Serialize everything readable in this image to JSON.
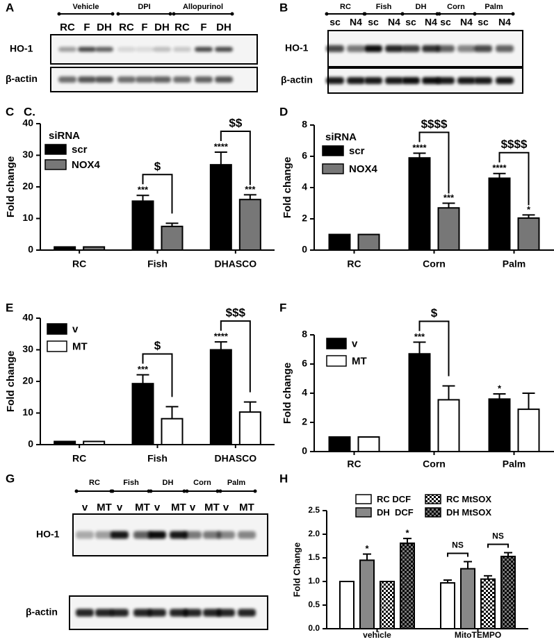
{
  "chart_data": [
    {
      "type": "bar",
      "panel": "C",
      "annotations": [
        "C."
      ],
      "ylabel": "Fold change",
      "legend_title": "siRNA",
      "categories": [
        "RC",
        "Fish",
        "DHASCO"
      ],
      "series": [
        {
          "name": "scr",
          "color": "#000000",
          "values": [
            1,
            15.5,
            27
          ],
          "errors": [
            0,
            1.8,
            4
          ],
          "significance": [
            null,
            "***",
            "****"
          ]
        },
        {
          "name": "NOX4",
          "color": "#777777",
          "values": [
            1,
            7.5,
            16
          ],
          "errors": [
            0,
            1,
            1.5
          ],
          "significance": [
            null,
            null,
            "***"
          ]
        }
      ],
      "comparisons": [
        {
          "category": "Fish",
          "label": "$"
        },
        {
          "category": "DHASCO",
          "label": "$$"
        }
      ],
      "ylim": [
        0,
        40
      ],
      "yticks": [
        0,
        10,
        20,
        30,
        40
      ]
    },
    {
      "type": "bar",
      "panel": "D",
      "ylabel": "Fold change",
      "legend_title": "siRNA",
      "categories": [
        "RC",
        "Corn",
        "Palm"
      ],
      "series": [
        {
          "name": "scr",
          "color": "#000000",
          "values": [
            1,
            5.9,
            4.6
          ],
          "errors": [
            0,
            0.3,
            0.3
          ],
          "significance": [
            null,
            "****",
            "****"
          ]
        },
        {
          "name": "NOX4",
          "color": "#777777",
          "values": [
            1,
            2.7,
            2.05
          ],
          "errors": [
            0,
            0.3,
            0.2
          ],
          "significance": [
            null,
            "***",
            "*"
          ]
        }
      ],
      "comparisons": [
        {
          "category": "Corn",
          "label": "$$$$"
        },
        {
          "category": "Palm",
          "label": "$$$$"
        }
      ],
      "ylim": [
        0,
        8
      ],
      "yticks": [
        0,
        2,
        4,
        6,
        8
      ]
    },
    {
      "type": "bar",
      "panel": "E",
      "ylabel": "Fold change",
      "categories": [
        "RC",
        "Fish",
        "DHASCO"
      ],
      "series": [
        {
          "name": "v",
          "color": "#000000",
          "values": [
            1,
            19.3,
            30
          ],
          "errors": [
            0,
            2.8,
            2.5
          ],
          "significance": [
            null,
            "***",
            "****"
          ]
        },
        {
          "name": "MT",
          "color": "#ffffff",
          "values": [
            1,
            8.2,
            10.3
          ],
          "errors": [
            0,
            3.8,
            3.2
          ],
          "significance": [
            null,
            null,
            null
          ]
        }
      ],
      "comparisons": [
        {
          "category": "Fish",
          "label": "$"
        },
        {
          "category": "DHASCO",
          "label": "$$$"
        }
      ],
      "ylim": [
        0,
        40
      ],
      "yticks": [
        0,
        10,
        20,
        30,
        40
      ]
    },
    {
      "type": "bar",
      "panel": "F",
      "ylabel": "Fold change",
      "categories": [
        "RC",
        "Corn",
        "Palm"
      ],
      "series": [
        {
          "name": "v",
          "color": "#000000",
          "values": [
            1,
            6.7,
            3.6
          ],
          "errors": [
            0,
            0.8,
            0.35
          ],
          "significance": [
            null,
            "***",
            "*"
          ]
        },
        {
          "name": "MT",
          "color": "#ffffff",
          "values": [
            1,
            3.55,
            2.9
          ],
          "errors": [
            0,
            0.95,
            1.1
          ],
          "significance": [
            null,
            null,
            null
          ]
        }
      ],
      "comparisons": [
        {
          "category": "Corn",
          "label": "$"
        }
      ],
      "ylim": [
        0,
        8
      ],
      "yticks": [
        0,
        2,
        4,
        6,
        8
      ]
    },
    {
      "type": "bar",
      "panel": "H",
      "ylabel": "Fold Change",
      "categories": [
        "vehicle",
        "MitoTEMPO"
      ],
      "series": [
        {
          "name": "RC DCF",
          "color": "#ffffff",
          "values": [
            1,
            0.97
          ],
          "errors": [
            0,
            0.06
          ],
          "significance": [
            null,
            null
          ]
        },
        {
          "name": "DH  DCF",
          "color": "#888888",
          "values": [
            1.45,
            1.27
          ],
          "errors": [
            0.13,
            0.15
          ],
          "significance": [
            "*",
            null
          ]
        },
        {
          "name": "RC MtSOX",
          "color": "#ffffff",
          "pattern": "checker",
          "values": [
            1,
            1.05
          ],
          "errors": [
            0,
            0.07
          ],
          "significance": [
            null,
            null
          ]
        },
        {
          "name": "DH MtSOX",
          "color": "#777777",
          "pattern": "checker",
          "values": [
            1.81,
            1.53
          ],
          "errors": [
            0.1,
            0.08
          ],
          "significance": [
            "*",
            null
          ]
        }
      ],
      "comparisons": [
        {
          "category": "MitoTEMPO",
          "series": [
            "RC DCF",
            "DH  DCF"
          ],
          "label": "NS"
        },
        {
          "category": "MitoTEMPO",
          "series": [
            "RC MtSOX",
            "DH MtSOX"
          ],
          "label": "NS"
        }
      ],
      "legend_columns": 2,
      "ylim": [
        0,
        2.5
      ],
      "yticks": [
        {
          "value": 0,
          "label": "0.0"
        },
        0.5,
        {
          "value": 1,
          "label": "1.0"
        },
        1.5,
        {
          "value": 2,
          "label": "2.0"
        },
        2.5
      ]
    }
  ],
  "blots": [
    {
      "panel": "A",
      "groups": [
        {
          "name": "Vehicle",
          "lanes": [
            "RC",
            "F",
            "DH"
          ]
        },
        {
          "name": "DPI",
          "lanes": [
            "RC",
            "F",
            "DH"
          ]
        },
        {
          "name": "Allopurinol",
          "lanes": [
            "RC",
            "F",
            "DH"
          ]
        }
      ],
      "rows": [
        "HO-1",
        "β-actin"
      ]
    },
    {
      "panel": "B",
      "groups": [
        {
          "name": "RC",
          "lanes": [
            "sc",
            "N4"
          ]
        },
        {
          "name": "Fish",
          "lanes": [
            "sc",
            "N4"
          ]
        },
        {
          "name": "DH",
          "lanes": [
            "sc",
            "N4"
          ]
        },
        {
          "name": "Corn",
          "lanes": [
            "sc",
            "N4"
          ]
        },
        {
          "name": "Palm",
          "lanes": [
            "sc",
            "N4"
          ]
        }
      ],
      "rows": [
        "HO-1",
        "β-actin"
      ]
    },
    {
      "panel": "G",
      "groups": [
        {
          "name": "RC",
          "lanes": [
            "v",
            "MT"
          ]
        },
        {
          "name": "Fish",
          "lanes": [
            "v",
            "MT"
          ]
        },
        {
          "name": "DH",
          "lanes": [
            "v",
            "MT"
          ]
        },
        {
          "name": "Corn",
          "lanes": [
            "v",
            "MT"
          ]
        },
        {
          "name": "Palm",
          "lanes": [
            "v",
            "MT"
          ]
        }
      ],
      "rows": [
        "HO-1",
        "β-actin"
      ]
    }
  ]
}
